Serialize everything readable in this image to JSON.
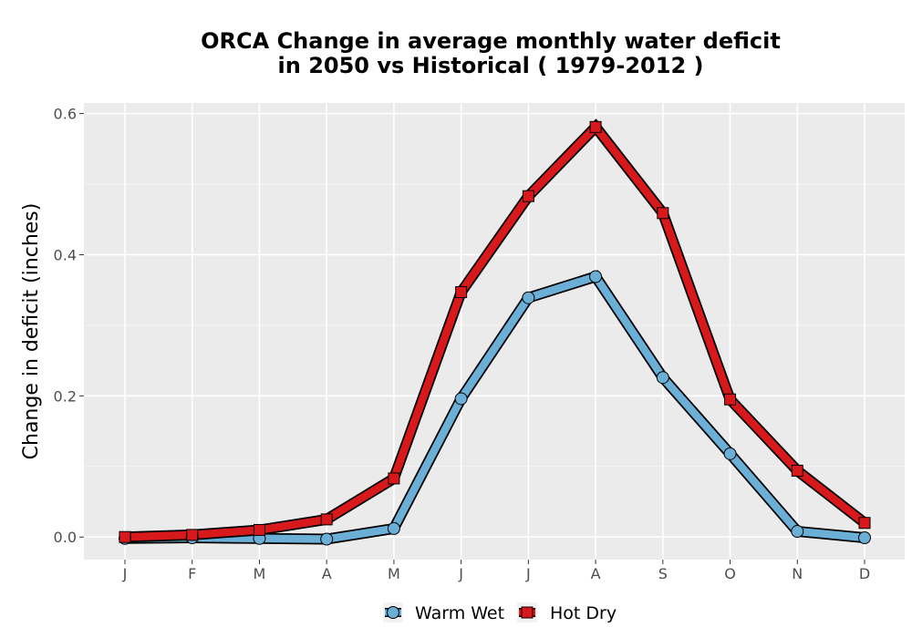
{
  "chart_data": {
    "type": "line",
    "title_line1": "ORCA  Change in average monthly water deficit",
    "title_line2": "in 2050 vs Historical ( 1979-2012 )",
    "ylabel": "Change in deficit (inches)",
    "xlabel": "",
    "categories": [
      "J",
      "F",
      "M",
      "A",
      "M",
      "J",
      "J",
      "A",
      "S",
      "O",
      "N",
      "D"
    ],
    "y_ticks": [
      "0.0",
      "0.2",
      "0.4",
      "0.6"
    ],
    "ylim": [
      -0.032,
      0.615
    ],
    "grid": true,
    "legend_position": "bottom",
    "series": [
      {
        "name": "Warm Wet",
        "marker": "circle",
        "color": "#6baed6",
        "values": [
          -0.002,
          -0.001,
          -0.002,
          -0.003,
          0.012,
          0.196,
          0.339,
          0.369,
          0.226,
          0.118,
          0.008,
          -0.001
        ]
      },
      {
        "name": "Hot Dry",
        "marker": "square",
        "color": "#d7191c",
        "values": [
          0.0,
          0.003,
          0.01,
          0.025,
          0.083,
          0.347,
          0.483,
          0.581,
          0.459,
          0.195,
          0.094,
          0.02
        ]
      }
    ]
  }
}
